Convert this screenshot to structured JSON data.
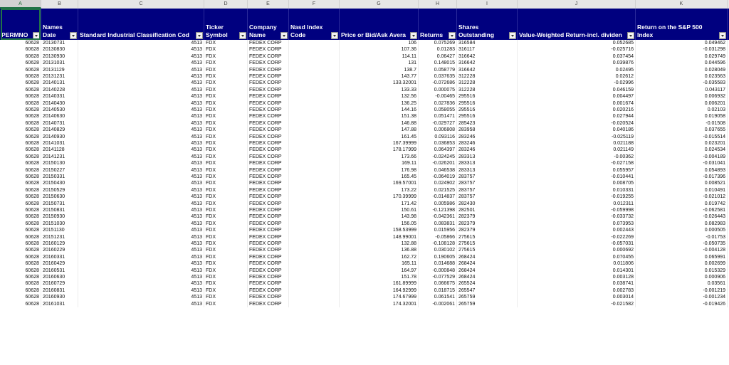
{
  "columns": [
    {
      "letter": "A",
      "line1": "",
      "line2": "PERMNO",
      "align": "r"
    },
    {
      "letter": "B",
      "line1": "Names",
      "line2": "Date",
      "align": "l"
    },
    {
      "letter": "C",
      "line1": "",
      "line2": "Standard Industrial Classification Cod",
      "align": "r"
    },
    {
      "letter": "D",
      "line1": "Ticker",
      "line2": "Symbol",
      "align": "l"
    },
    {
      "letter": "E",
      "line1": "Company",
      "line2": "Name",
      "align": "l"
    },
    {
      "letter": "F",
      "line1": "Nasd Index",
      "line2": "Code",
      "align": "l"
    },
    {
      "letter": "G",
      "line1": "",
      "line2": "Price or Bid/Ask Avera",
      "align": "r"
    },
    {
      "letter": "H",
      "line1": "",
      "line2": "Returns",
      "align": "r"
    },
    {
      "letter": "I",
      "line1": "Shares",
      "line2": "Outstanding",
      "align": "l"
    },
    {
      "letter": "J",
      "line1": "",
      "line2": "Value-Weighted Return-incl. dividen",
      "align": "r"
    },
    {
      "letter": "K",
      "line1": "Return on the S&P 500",
      "line2": "Index",
      "align": "r"
    }
  ],
  "rows": [
    [
      "60628",
      "20130731",
      "4513",
      "FDX",
      "FEDEX CORP",
      "",
      "106",
      "0.075269",
      "316584",
      "0.052685",
      "0.049462"
    ],
    [
      "60628",
      "20130830",
      "4513",
      "FDX",
      "FEDEX CORP",
      "",
      "107.36",
      "0.01283",
      "316117",
      "-0.025716",
      "-0.031298"
    ],
    [
      "60628",
      "20130930",
      "4513",
      "FDX",
      "FEDEX CORP",
      "",
      "114.11",
      "0.06427",
      "316642",
      "0.037454",
      "0.029749"
    ],
    [
      "60628",
      "20131031",
      "4513",
      "FDX",
      "FEDEX CORP",
      "",
      "131",
      "0.148015",
      "316642",
      "0.039876",
      "0.044596"
    ],
    [
      "60628",
      "20131129",
      "4513",
      "FDX",
      "FEDEX CORP",
      "",
      "138.7",
      "0.058779",
      "316642",
      "0.02495",
      "0.028049"
    ],
    [
      "60628",
      "20131231",
      "4513",
      "FDX",
      "FEDEX CORP",
      "",
      "143.77",
      "0.037635",
      "312228",
      "0.02612",
      "0.023563"
    ],
    [
      "60628",
      "20140131",
      "4513",
      "FDX",
      "FEDEX CORP",
      "",
      "133.32001",
      "-0.072686",
      "312228",
      "-0.02996",
      "-0.035583"
    ],
    [
      "60628",
      "20140228",
      "4513",
      "FDX",
      "FEDEX CORP",
      "",
      "133.33",
      "0.000075",
      "312228",
      "0.046159",
      "0.043117"
    ],
    [
      "60628",
      "20140331",
      "4513",
      "FDX",
      "FEDEX CORP",
      "",
      "132.56",
      "-0.00465",
      "295516",
      "0.004497",
      "0.006932"
    ],
    [
      "60628",
      "20140430",
      "4513",
      "FDX",
      "FEDEX CORP",
      "",
      "136.25",
      "0.027836",
      "295516",
      "0.001674",
      "0.006201"
    ],
    [
      "60628",
      "20140530",
      "4513",
      "FDX",
      "FEDEX CORP",
      "",
      "144.16",
      "0.058055",
      "295516",
      "0.020216",
      "0.02103"
    ],
    [
      "60628",
      "20140630",
      "4513",
      "FDX",
      "FEDEX CORP",
      "",
      "151.38",
      "0.051471",
      "295516",
      "0.027944",
      "0.019058"
    ],
    [
      "60628",
      "20140731",
      "4513",
      "FDX",
      "FEDEX CORP",
      "",
      "146.88",
      "-0.029727",
      "285423",
      "-0.020524",
      "-0.01508"
    ],
    [
      "60628",
      "20140829",
      "4513",
      "FDX",
      "FEDEX CORP",
      "",
      "147.88",
      "0.006808",
      "283958",
      "0.040186",
      "0.037655"
    ],
    [
      "60628",
      "20140930",
      "4513",
      "FDX",
      "FEDEX CORP",
      "",
      "161.45",
      "0.093116",
      "283246",
      "-0.025119",
      "-0.015514"
    ],
    [
      "60628",
      "20141031",
      "4513",
      "FDX",
      "FEDEX CORP",
      "",
      "167.39999",
      "0.036853",
      "283246",
      "0.021188",
      "0.023201"
    ],
    [
      "60628",
      "20141128",
      "4513",
      "FDX",
      "FEDEX CORP",
      "",
      "178.17999",
      "0.064397",
      "283246",
      "0.021149",
      "0.024534"
    ],
    [
      "60628",
      "20141231",
      "4513",
      "FDX",
      "FEDEX CORP",
      "",
      "173.66",
      "-0.024245",
      "283313",
      "-0.00362",
      "-0.004189"
    ],
    [
      "60628",
      "20150130",
      "4513",
      "FDX",
      "FEDEX CORP",
      "",
      "169.11",
      "-0.026201",
      "283313",
      "-0.027158",
      "-0.031041"
    ],
    [
      "60628",
      "20150227",
      "4513",
      "FDX",
      "FEDEX CORP",
      "",
      "176.98",
      "0.046538",
      "283313",
      "0.055957",
      "0.054893"
    ],
    [
      "60628",
      "20150331",
      "4513",
      "FDX",
      "FEDEX CORP",
      "",
      "165.45",
      "-0.064019",
      "283757",
      "-0.010441",
      "-0.017396"
    ],
    [
      "60628",
      "20150430",
      "4513",
      "FDX",
      "FEDEX CORP",
      "",
      "169.57001",
      "0.024902",
      "283757",
      "0.008705",
      "0.008521"
    ],
    [
      "60628",
      "20150529",
      "4513",
      "FDX",
      "FEDEX CORP",
      "",
      "173.22",
      "0.021525",
      "283757",
      "0.010331",
      "0.010491"
    ],
    [
      "60628",
      "20150630",
      "4513",
      "FDX",
      "FEDEX CORP",
      "",
      "170.39999",
      "-0.014837",
      "283757",
      "-0.019255",
      "-0.021012"
    ],
    [
      "60628",
      "20150731",
      "4513",
      "FDX",
      "FEDEX CORP",
      "",
      "171.42",
      "0.005986",
      "282430",
      "0.012311",
      "0.019742"
    ],
    [
      "60628",
      "20150831",
      "4513",
      "FDX",
      "FEDEX CORP",
      "",
      "150.61",
      "-0.121398",
      "282501",
      "-0.059998",
      "-0.062581"
    ],
    [
      "60628",
      "20150930",
      "4513",
      "FDX",
      "FEDEX CORP",
      "",
      "143.98",
      "-0.042361",
      "282379",
      "-0.033732",
      "-0.026443"
    ],
    [
      "60628",
      "20151030",
      "4513",
      "FDX",
      "FEDEX CORP",
      "",
      "156.05",
      "0.083831",
      "282379",
      "0.073953",
      "0.082983"
    ],
    [
      "60628",
      "20151130",
      "4513",
      "FDX",
      "FEDEX CORP",
      "",
      "158.53999",
      "0.015956",
      "282379",
      "0.002443",
      "0.000505"
    ],
    [
      "60628",
      "20151231",
      "4513",
      "FDX",
      "FEDEX CORP",
      "",
      "148.99001",
      "-0.05866",
      "275615",
      "-0.022269",
      "-0.01753"
    ],
    [
      "60628",
      "20160129",
      "4513",
      "FDX",
      "FEDEX CORP",
      "",
      "132.88",
      "-0.108128",
      "275615",
      "-0.057031",
      "-0.050735"
    ],
    [
      "60628",
      "20160229",
      "4513",
      "FDX",
      "FEDEX CORP",
      "",
      "136.88",
      "0.030102",
      "275615",
      "0.000692",
      "-0.004128"
    ],
    [
      "60628",
      "20160331",
      "4513",
      "FDX",
      "FEDEX CORP",
      "",
      "162.72",
      "0.190605",
      "268424",
      "0.070455",
      "0.065991"
    ],
    [
      "60628",
      "20160429",
      "4513",
      "FDX",
      "FEDEX CORP",
      "",
      "165.11",
      "0.014688",
      "268424",
      "0.011806",
      "0.002699"
    ],
    [
      "60628",
      "20160531",
      "4513",
      "FDX",
      "FEDEX CORP",
      "",
      "164.97",
      "-0.000848",
      "268424",
      "0.014301",
      "0.015329"
    ],
    [
      "60628",
      "20160630",
      "4513",
      "FDX",
      "FEDEX CORP",
      "",
      "151.78",
      "-0.077529",
      "268424",
      "0.003128",
      "0.000906"
    ],
    [
      "60628",
      "20160729",
      "4513",
      "FDX",
      "FEDEX CORP",
      "",
      "161.89999",
      "0.066675",
      "265524",
      "0.038741",
      "0.03561"
    ],
    [
      "60628",
      "20160831",
      "4513",
      "FDX",
      "FEDEX CORP",
      "",
      "164.92999",
      "0.018715",
      "265547",
      "0.002783",
      "-0.001219"
    ],
    [
      "60628",
      "20160930",
      "4513",
      "FDX",
      "FEDEX CORP",
      "",
      "174.67999",
      "0.061541",
      "265759",
      "0.003014",
      "-0.001234"
    ],
    [
      "60628",
      "20161031",
      "4513",
      "FDX",
      "FEDEX CORP",
      "",
      "174.32001",
      "-0.002061",
      "265759",
      "-0.021582",
      "-0.019426"
    ]
  ],
  "colors": {
    "header_bg": "#00007f",
    "header_text": "#ffffff",
    "selection": "#217346"
  }
}
